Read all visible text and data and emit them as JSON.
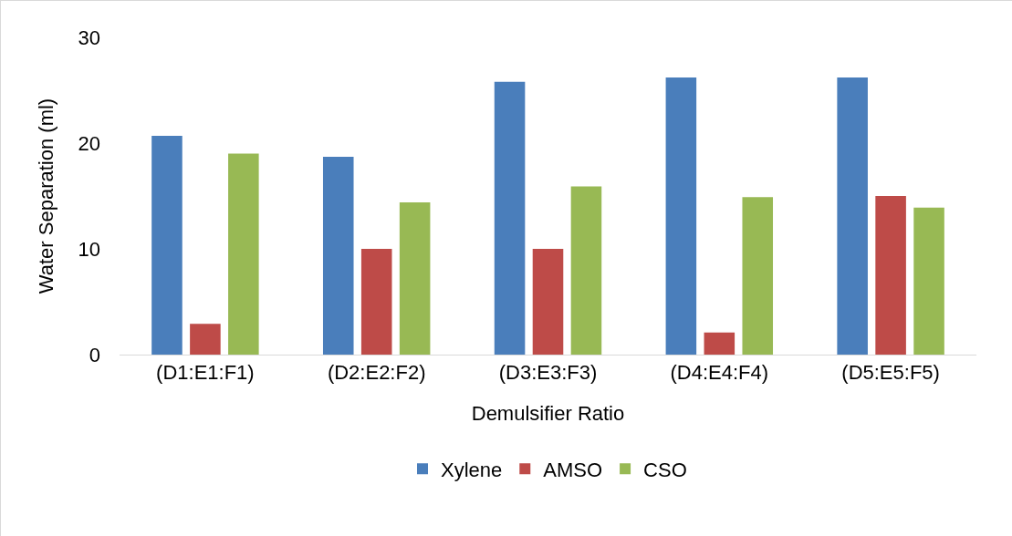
{
  "chart_data": {
    "type": "bar",
    "xlabel": "Demulsifier Ratio",
    "ylabel": "Water Separation (ml)",
    "categories": [
      "(D1:E1:F1)",
      "(D2:E2:F2)",
      "(D3:E3:F3)",
      "(D4:E4:F4)",
      "(D5:E5:F5)"
    ],
    "series": [
      {
        "name": "Xylene",
        "color": "#4a7ebb",
        "values": [
          20.7,
          18.7,
          25.8,
          26.2,
          26.2
        ]
      },
      {
        "name": "AMSO",
        "color": "#be4b48",
        "values": [
          2.9,
          10,
          10,
          2.1,
          15
        ]
      },
      {
        "name": "CSO",
        "color": "#98b954",
        "values": [
          19,
          14.4,
          15.9,
          14.9,
          13.9
        ]
      }
    ],
    "ylim": [
      0,
      30
    ],
    "yticks": [
      0,
      10,
      20,
      30
    ],
    "grid": false,
    "legend": "bottom"
  }
}
